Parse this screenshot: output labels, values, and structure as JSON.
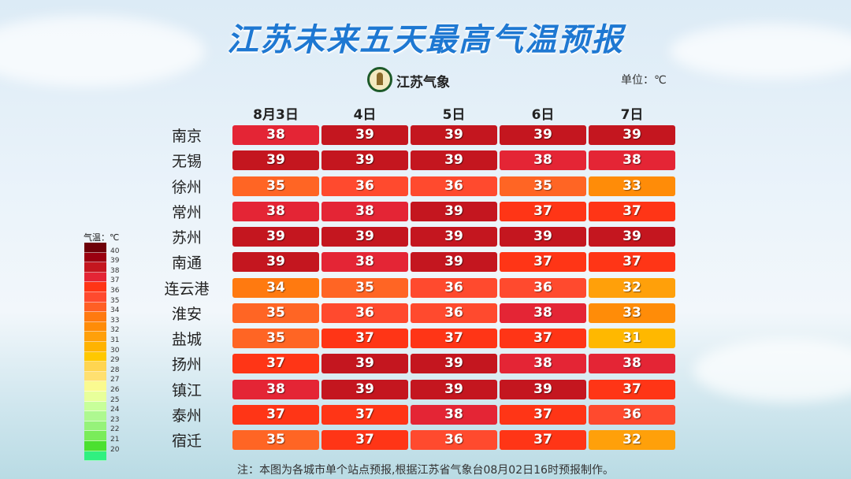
{
  "title": "江苏未来五天最高气温预报",
  "logo_text": "江苏气象",
  "unit": "单位：℃",
  "footer": "注：本图为各城市单个站点预报,根据江苏省气象台08月02日16时预报制作。",
  "chart_data": {
    "type": "heatmap",
    "title": "江苏未来五天最高气温预报",
    "columns": [
      "8月3日",
      "4日",
      "5日",
      "6日",
      "7日"
    ],
    "rows": [
      "南京",
      "无锡",
      "徐州",
      "常州",
      "苏州",
      "南通",
      "连云港",
      "淮安",
      "盐城",
      "扬州",
      "镇江",
      "泰州",
      "宿迁"
    ],
    "values": [
      [
        38,
        39,
        39,
        39,
        39
      ],
      [
        39,
        39,
        39,
        38,
        38
      ],
      [
        35,
        36,
        36,
        35,
        33
      ],
      [
        38,
        38,
        39,
        37,
        37
      ],
      [
        39,
        39,
        39,
        39,
        39
      ],
      [
        39,
        38,
        39,
        37,
        37
      ],
      [
        34,
        35,
        36,
        36,
        32
      ],
      [
        35,
        36,
        36,
        38,
        33
      ],
      [
        35,
        37,
        37,
        37,
        31
      ],
      [
        37,
        39,
        39,
        38,
        38
      ],
      [
        38,
        39,
        39,
        39,
        37
      ],
      [
        37,
        37,
        38,
        37,
        36
      ],
      [
        35,
        37,
        36,
        37,
        32
      ]
    ],
    "legend": {
      "title": "气温：℃",
      "labels": [
        "40",
        "39",
        "38",
        "37",
        "36",
        "35",
        "34",
        "33",
        "32",
        "31",
        "30",
        "29",
        "28",
        "27",
        "26",
        "25",
        "24",
        "23",
        "22",
        "21",
        "20"
      ],
      "colors": [
        "#6e0008",
        "#9a0010",
        "#c4161f",
        "#e42535",
        "#ff3516",
        "#ff4a2e",
        "#ff5f24",
        "#ff7a10",
        "#ff8c08",
        "#ffa00a",
        "#ffb300",
        "#ffc800",
        "#ffd550",
        "#ffe070",
        "#fafa90",
        "#e8ff9a",
        "#c8ff9a",
        "#aef890",
        "#96f27a",
        "#7aec5a",
        "#4be030",
        "#30f080"
      ]
    },
    "value_colors": {
      "31": "#ffb800",
      "32": "#ffa00a",
      "33": "#ff8c08",
      "34": "#ff7a10",
      "35": "#ff6524",
      "36": "#ff4a2e",
      "37": "#ff3516",
      "38": "#e42535",
      "39": "#c4161f"
    }
  }
}
